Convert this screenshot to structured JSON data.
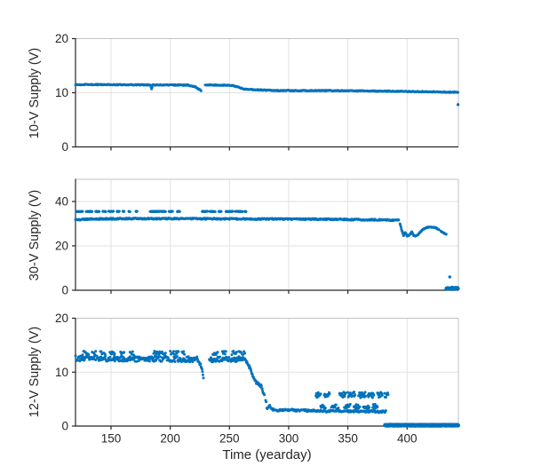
{
  "figure": {
    "background": "#ffffff",
    "accent_blue": "#0072BD",
    "axis_color": "#262626",
    "grid_color": "#e2e2e2",
    "box_light_color": "#c3c3c3"
  },
  "chart_data": [
    {
      "type": "scatter",
      "title": "",
      "ylabel": "10-V Supply (V)",
      "xlabel": "",
      "ylim": [
        0,
        20
      ],
      "yticks": [
        0,
        10,
        20
      ],
      "xlim": [
        120,
        443.3
      ],
      "xticks": [
        150,
        200,
        250,
        300,
        350,
        400
      ],
      "show_x_tick_labels": false,
      "grid": true,
      "legend": "none",
      "series": [
        {
          "name": "supply-10v-main-seg1",
          "noise": 0.08,
          "anchors": [
            [
              120,
              11.5
            ],
            [
              150,
              11.5
            ],
            [
              183,
              11.45
            ],
            [
              184.3,
              10.78
            ],
            [
              185.2,
              11.45
            ],
            [
              215,
              11.42
            ],
            [
              221,
              11.1
            ],
            [
              226,
              10.4
            ]
          ]
        },
        {
          "name": "supply-10v-main-seg2",
          "noise": 0.08,
          "anchors": [
            [
              229.5,
              11.45
            ],
            [
              251,
              11.4
            ],
            [
              257,
              11.1
            ],
            [
              262,
              10.7
            ],
            [
              272,
              10.55
            ],
            [
              290,
              10.4
            ],
            [
              330,
              10.4
            ],
            [
              380,
              10.3
            ],
            [
              443,
              10.1
            ]
          ]
        },
        {
          "name": "supply-10v-outlier-dot",
          "noise": 0,
          "radius": 1.6,
          "anchors": [
            [
              443,
              7.8
            ],
            [
              443,
              7.8
            ]
          ]
        }
      ]
    },
    {
      "type": "scatter",
      "title": "",
      "ylabel": "30-V Supply (V)",
      "xlabel": "",
      "ylim": [
        0,
        50
      ],
      "yticks": [
        0,
        20,
        40
      ],
      "xlim": [
        120,
        443.3
      ],
      "xticks": [
        150,
        200,
        250,
        300,
        350,
        400
      ],
      "show_x_tick_labels": false,
      "grid": true,
      "legend": "none",
      "series": [
        {
          "name": "supply-30v-main-line",
          "noise": 0.3,
          "step": 0.45,
          "anchors": [
            [
              120,
              31.8
            ],
            [
              135,
              32.1
            ],
            [
              170,
              32.3
            ],
            [
              240,
              32.2
            ],
            [
              330,
              32.0
            ],
            [
              393,
              31.6
            ]
          ]
        },
        {
          "name": "supply-30v-high-dashes",
          "y": 35.5,
          "noise": 0.12,
          "step": 0.35,
          "intervals": [
            [
              121,
              126
            ],
            [
              129,
              134
            ],
            [
              137,
              140
            ],
            [
              143,
              145.5
            ],
            [
              148,
              152
            ],
            [
              155,
              157
            ],
            [
              160,
              161
            ],
            [
              165,
              166
            ],
            [
              171,
              172
            ],
            [
              183,
              196
            ],
            [
              199,
              202
            ],
            [
              206,
              208
            ],
            [
              227,
              231.5
            ],
            [
              233.5,
              238
            ],
            [
              241,
              243
            ],
            [
              247,
              253
            ],
            [
              255,
              261
            ],
            [
              263,
              264
            ]
          ]
        },
        {
          "name": "supply-30v-degraded-seg",
          "noise": 0.15,
          "step": 0.4,
          "anchors": [
            [
              394,
              30.0
            ],
            [
              395.5,
              27.0
            ],
            [
              397,
              24.7
            ],
            [
              398.5,
              26.0
            ],
            [
              400,
              24.4
            ],
            [
              402,
              24.9
            ],
            [
              404,
              26.4
            ],
            [
              405.5,
              24.6
            ],
            [
              407,
              24.4
            ],
            [
              409,
              25.0
            ],
            [
              411,
              26.2
            ],
            [
              413,
              27.3
            ],
            [
              416,
              28.2
            ],
            [
              419,
              28.5
            ],
            [
              422,
              28.4
            ],
            [
              425,
              28.0
            ],
            [
              427,
              27.2
            ]
          ]
        },
        {
          "name": "supply-30v-tail-dash",
          "noise": 0.1,
          "step": 0.4,
          "anchors": [
            [
              428.5,
              26.6
            ],
            [
              431,
              25.8
            ],
            [
              433,
              25.2
            ]
          ]
        },
        {
          "name": "supply-30v-end-low-blob",
          "noise": 0.4,
          "radius": 2.0,
          "step": 0.35,
          "anchors": [
            [
              433,
              0.9
            ],
            [
              443,
              0.8
            ]
          ]
        },
        {
          "name": "supply-30v-end-dot",
          "noise": 0,
          "radius": 1.6,
          "anchors": [
            [
              436,
              6.0
            ],
            [
              436,
              6.0
            ]
          ]
        }
      ]
    },
    {
      "type": "scatter",
      "title": "",
      "ylabel": "12-V Supply (V)",
      "xlabel": "Time (yearday)",
      "ylim": [
        0,
        20
      ],
      "yticks": [
        0,
        10,
        20
      ],
      "xlim": [
        120,
        443.3
      ],
      "xticks": [
        150,
        200,
        250,
        300,
        350,
        400
      ],
      "show_x_tick_labels": true,
      "grid": true,
      "legend": "none",
      "series": [
        {
          "name": "supply-12v-main-seg1",
          "noise": 0.5,
          "step": 0.45,
          "anchors": [
            [
              120,
              12.55
            ],
            [
              160,
              12.5
            ],
            [
              200,
              12.45
            ],
            [
              223,
              12.35
            ]
          ]
        },
        {
          "name": "supply-12v-high-dots",
          "y": 13.55,
          "noise": 0.35,
          "step": 0.7,
          "intervals": [
            [
              126,
              131
            ],
            [
              134,
              137
            ],
            [
              141,
              145
            ],
            [
              149,
              153
            ],
            [
              158,
              161
            ],
            [
              166,
              169
            ],
            [
              186,
              196
            ],
            [
              200,
              207
            ],
            [
              210,
              212
            ],
            [
              236,
              240
            ],
            [
              244,
              247
            ],
            [
              252,
              256
            ],
            [
              258,
              263
            ]
          ]
        },
        {
          "name": "supply-12v-drop-tail-1",
          "noise": 0.25,
          "step": 0.4,
          "anchors": [
            [
              223,
              12.2
            ],
            [
              226,
              11.2
            ],
            [
              228,
              9.0
            ]
          ]
        },
        {
          "name": "supply-12v-main-seg2",
          "noise": 0.5,
          "step": 0.45,
          "anchors": [
            [
              233,
              12.35
            ],
            [
              250,
              12.4
            ],
            [
              262,
              12.45
            ]
          ]
        },
        {
          "name": "supply-12v-decline",
          "noise": 0.25,
          "step": 0.35,
          "anchors": [
            [
              263,
              12.3
            ],
            [
              264.5,
              11.9
            ],
            [
              266,
              11.3
            ],
            [
              268,
              10.4
            ],
            [
              270,
              9.2
            ],
            [
              271.5,
              8.5
            ],
            [
              273,
              8.0
            ],
            [
              275,
              7.7
            ],
            [
              277,
              7.4
            ],
            [
              278,
              6.4
            ],
            [
              279.5,
              5.7
            ]
          ]
        },
        {
          "name": "supply-12v-drop-dots",
          "noise": 0.3,
          "step": 0.4,
          "anchors": [
            [
              280.5,
              4.9
            ],
            [
              281,
              4.3
            ]
          ]
        },
        {
          "name": "supply-12v-low-line",
          "noise": 0.18,
          "step": 0.5,
          "anchors": [
            [
              281.5,
              3.3
            ],
            [
              284,
              3.7
            ],
            [
              286,
              3.1
            ],
            [
              290,
              2.9
            ],
            [
              296,
              2.95
            ],
            [
              302,
              3.0
            ],
            [
              308,
              2.85
            ],
            [
              314,
              2.9
            ],
            [
              320,
              2.8
            ],
            [
              326,
              2.85
            ],
            [
              332,
              2.75
            ],
            [
              338,
              2.85
            ],
            [
              344,
              2.8
            ],
            [
              352,
              2.75
            ],
            [
              358,
              2.8
            ],
            [
              364,
              2.65
            ],
            [
              370,
              2.75
            ],
            [
              376,
              2.65
            ],
            [
              382,
              2.7
            ]
          ]
        },
        {
          "name": "supply-12v-mid-upper-clusters",
          "y": 5.8,
          "noise": 0.55,
          "step": 0.4,
          "intervals": [
            [
              323,
              327
            ],
            [
              330,
              334.5
            ],
            [
              343,
              348
            ],
            [
              350,
              356
            ],
            [
              359,
              365
            ],
            [
              367,
              372
            ],
            [
              375,
              379
            ],
            [
              381,
              384
            ]
          ]
        },
        {
          "name": "supply-12v-mid-lower-clusters",
          "y": 3.6,
          "noise": 0.45,
          "step": 0.5,
          "intervals": [
            [
              327,
              331
            ],
            [
              336,
              342
            ],
            [
              347,
              352
            ],
            [
              355,
              360
            ],
            [
              363,
              368
            ],
            [
              371,
              375
            ]
          ]
        },
        {
          "name": "supply-12v-zero-line",
          "noise": 0.05,
          "radius": 2.4,
          "step": 0.3,
          "anchors": [
            [
              381.5,
              0.15
            ],
            [
              443,
              0.15
            ]
          ]
        }
      ]
    }
  ]
}
